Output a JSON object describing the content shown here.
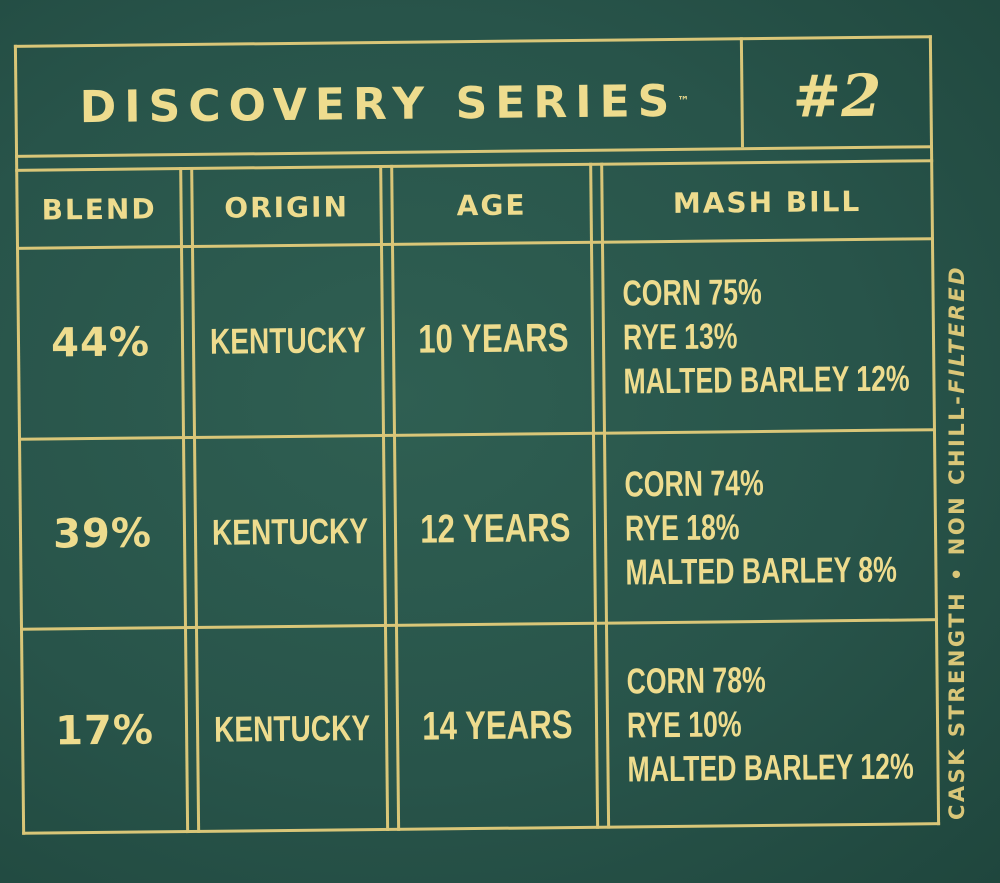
{
  "header": {
    "title": "DISCOVERY SERIES",
    "trademark": "™",
    "number": "#2"
  },
  "table": {
    "columns": [
      "BLEND",
      "ORIGIN",
      "AGE",
      "MASH BILL"
    ],
    "rows": [
      {
        "blend": "44%",
        "origin": "KENTUCKY",
        "age": "10 YEARS",
        "mash_bill": [
          "CORN 75%",
          "RYE 13%",
          "MALTED BARLEY 12%"
        ]
      },
      {
        "blend": "39%",
        "origin": "KENTUCKY",
        "age": "12 YEARS",
        "mash_bill": [
          "CORN 74%",
          "RYE 18%",
          "MALTED BARLEY 8%"
        ]
      },
      {
        "blend": "17%",
        "origin": "KENTUCKY",
        "age": "14 YEARS",
        "mash_bill": [
          "CORN 78%",
          "RYE 10%",
          "MALTED BARLEY 12%"
        ]
      }
    ]
  },
  "side_note": {
    "left": "CASK STRENGTH",
    "separator": "•",
    "right_plain": "NON CHILL-",
    "right_italic": "FILTERED"
  },
  "colors": {
    "background": "#28544a",
    "gold": "#d9c678"
  }
}
